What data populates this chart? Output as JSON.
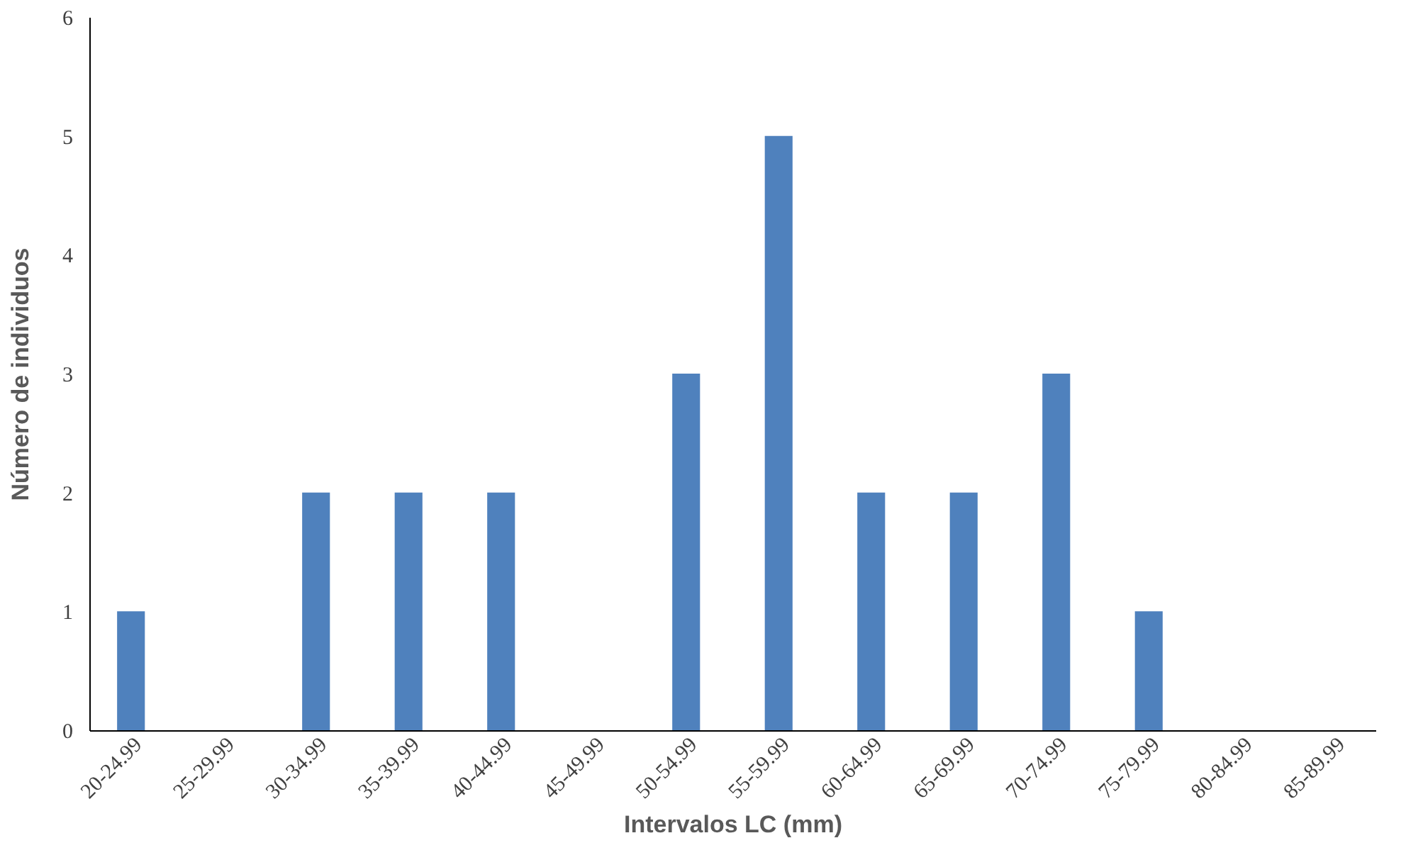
{
  "chart_data": {
    "type": "bar",
    "xlabel": "Intervalos LC (mm)",
    "ylabel": "Número de individuos",
    "categories": [
      "20-24.99",
      "25-29.99",
      "30-34.99",
      "35-39.99",
      "40-44.99",
      "45-49.99",
      "50-54.99",
      "55-59.99",
      "60-64.99",
      "65-69.99",
      "70-74.99",
      "75-79.99",
      "80-84.99",
      "85-89.99"
    ],
    "values": [
      1,
      0,
      2,
      2,
      2,
      0,
      3,
      5,
      2,
      2,
      3,
      1,
      0,
      0
    ],
    "color": "#4f81bd",
    "ylim": [
      0,
      6
    ],
    "yticks": [
      0,
      1,
      2,
      3,
      4,
      5,
      6
    ],
    "grid": false
  }
}
